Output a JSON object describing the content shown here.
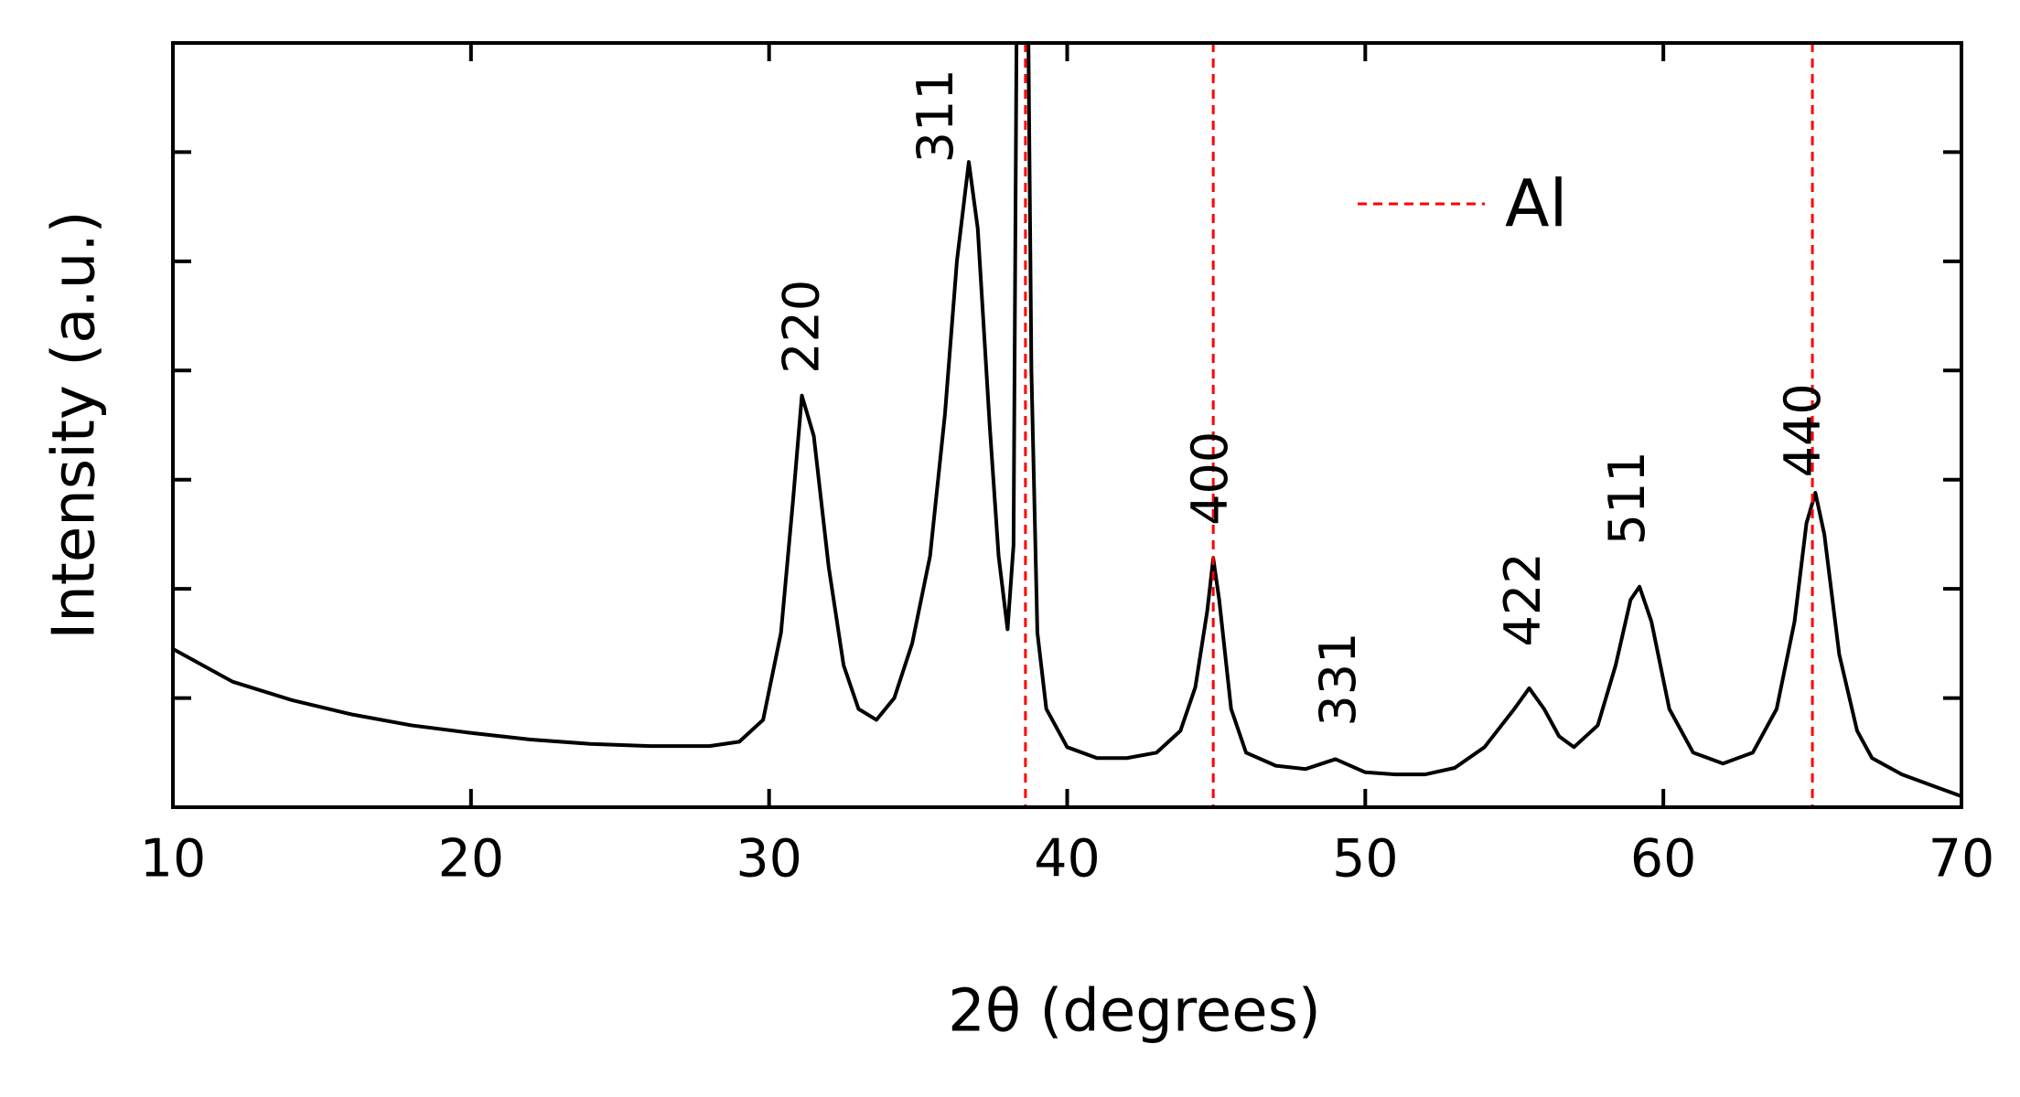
{
  "chart_data": {
    "type": "line",
    "x_label": "2θ (degrees)",
    "y_label": "Intensity (a.u.)",
    "x": [
      10,
      12,
      14,
      16,
      18,
      20,
      22,
      24,
      26,
      28,
      29,
      29.8,
      30.4,
      30.8,
      31.1,
      31.5,
      32,
      32.5,
      33,
      33.6,
      34.2,
      34.8,
      35.4,
      35.9,
      36.3,
      36.7,
      37.0,
      37.4,
      37.7,
      38.0,
      38.2,
      38.3,
      38.5,
      38.7,
      38.8,
      39.0,
      39.3,
      40,
      41,
      42,
      43,
      43.8,
      44.3,
      44.7,
      44.9,
      45.1,
      45.5,
      46,
      47,
      48,
      49,
      50,
      51,
      52,
      53,
      54,
      55,
      55.5,
      56,
      56.5,
      57,
      57.8,
      58.4,
      58.9,
      59.2,
      59.6,
      60.2,
      61,
      62,
      63,
      63.8,
      64.4,
      64.8,
      65.1,
      65.4,
      65.9,
      66.5,
      67,
      68,
      69,
      70
    ],
    "series": [
      {
        "color": "#000000",
        "values": [
          1.45,
          1.15,
          0.98,
          0.85,
          0.75,
          0.68,
          0.62,
          0.58,
          0.56,
          0.56,
          0.6,
          0.8,
          1.6,
          2.8,
          3.77,
          3.4,
          2.2,
          1.3,
          0.9,
          0.8,
          1.0,
          1.5,
          2.3,
          3.6,
          5.0,
          5.91,
          5.3,
          3.5,
          2.3,
          1.63,
          2.4,
          7,
          7,
          7,
          4.0,
          1.6,
          0.9,
          0.55,
          0.45,
          0.45,
          0.5,
          0.7,
          1.1,
          1.8,
          2.28,
          1.9,
          0.9,
          0.5,
          0.38,
          0.35,
          0.44,
          0.32,
          0.3,
          0.3,
          0.36,
          0.55,
          0.9,
          1.09,
          0.9,
          0.65,
          0.55,
          0.75,
          1.3,
          1.9,
          2.02,
          1.7,
          0.9,
          0.5,
          0.4,
          0.5,
          0.9,
          1.7,
          2.6,
          2.88,
          2.5,
          1.4,
          0.7,
          0.45,
          0.3,
          0.2,
          0.1
        ]
      }
    ],
    "reference_lines": {
      "name": "Al",
      "color": "#ff0000",
      "positions": [
        38.6,
        44.9,
        65.0
      ]
    },
    "annotations": [
      {
        "text": "220",
        "x": 31.2,
        "y": 3.97
      },
      {
        "text": "311",
        "x": 35.7,
        "y": 5.9
      },
      {
        "text": "400",
        "x": 44.9,
        "y": 2.58
      },
      {
        "text": "331",
        "x": 49.2,
        "y": 0.74
      },
      {
        "text": "422",
        "x": 55.4,
        "y": 1.47
      },
      {
        "text": "511",
        "x": 58.9,
        "y": 2.4
      },
      {
        "text": "440",
        "x": 64.8,
        "y": 3.02
      }
    ],
    "xlim": [
      10,
      70
    ],
    "xticks": [
      10,
      20,
      30,
      40,
      50,
      60,
      70
    ],
    "ylim": [
      0,
      7
    ],
    "yticks": [
      1,
      2,
      3,
      4,
      5,
      6
    ]
  }
}
